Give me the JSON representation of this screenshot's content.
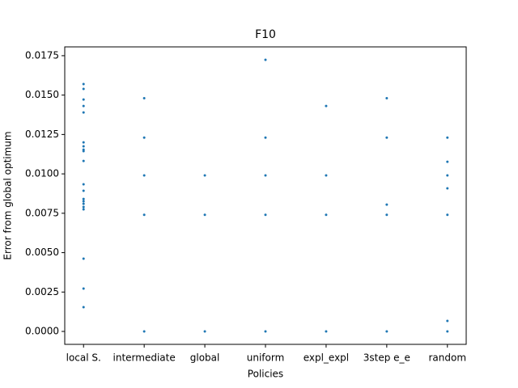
{
  "chart_data": {
    "type": "strip",
    "title": "F10",
    "x_label": "Policies",
    "y_label": "Error from global optimum",
    "categories": [
      "local S.",
      "intermediate",
      "global",
      "uniform",
      "expl_expl",
      "3step e_e",
      "random"
    ],
    "values": [
      [
        0.0157,
        0.01539,
        0.01472,
        0.01431,
        0.0139,
        0.012,
        0.01175,
        0.01154,
        0.01144,
        0.01082,
        0.00934,
        0.00893,
        0.00841,
        0.00826,
        0.0081,
        0.0079,
        0.00775,
        0.00462,
        0.00272,
        0.00154
      ],
      [
        0.0148,
        0.0123,
        0.0099,
        0.0074,
        0.0
      ],
      [
        0.0099,
        0.0074,
        0.0
      ],
      [
        0.01724,
        0.0123,
        0.0099,
        0.0074,
        0.0
      ],
      [
        0.01431,
        0.0099,
        0.0074,
        0.0
      ],
      [
        0.0148,
        0.0123,
        0.00805,
        0.0074,
        0.0
      ],
      [
        0.0123,
        0.01077,
        0.0099,
        0.00908,
        0.0074,
        0.00067,
        0.0
      ]
    ],
    "color": "#1f77b4",
    "ylim": [
      -0.00082,
      0.01806
    ],
    "yticks": [
      {
        "value": 0,
        "label": "0.0000"
      },
      {
        "value": 0.0025,
        "label": "0.0025"
      },
      {
        "value": 0.005,
        "label": "0.0050"
      },
      {
        "value": 0.0075,
        "label": "0.0075"
      },
      {
        "value": 0.01,
        "label": "0.0100"
      },
      {
        "value": 0.0125,
        "label": "0.0125"
      },
      {
        "value": 0.015,
        "label": "0.0150"
      },
      {
        "value": 0.0175,
        "label": "0.0175"
      }
    ],
    "grid": false
  }
}
